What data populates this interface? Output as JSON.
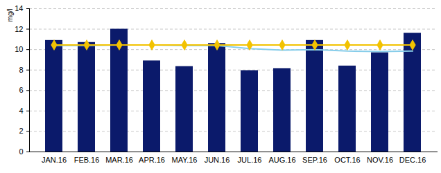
{
  "chart_data": {
    "type": "bar",
    "ylabel": "mg/l",
    "categories": [
      "JAN.16",
      "FEB.16",
      "MAR.16",
      "APR.16",
      "MAY.16",
      "JUN.16",
      "JUL.16",
      "AUG.16",
      "SEP.16",
      "OCT.16",
      "NOV.16",
      "DEC.16"
    ],
    "ylim": [
      0,
      14
    ],
    "yticks": [
      0,
      2,
      4,
      6,
      8,
      10,
      12,
      14
    ],
    "grid": true,
    "series": [
      {
        "type": "bar",
        "color": "#0b1a6b",
        "values": [
          10.9,
          10.7,
          12.0,
          8.9,
          8.35,
          10.6,
          7.95,
          8.15,
          10.9,
          8.4,
          9.7,
          11.6
        ]
      },
      {
        "type": "line",
        "color": "#87cdea",
        "values": [
          10.4,
          10.4,
          10.45,
          10.45,
          10.4,
          10.4,
          10.1,
          9.95,
          10.0,
          9.85,
          9.8,
          9.85
        ]
      },
      {
        "type": "line",
        "color": "#f2c200",
        "marker": "diamond",
        "values": [
          10.45,
          10.45,
          10.45,
          10.45,
          10.45,
          10.45,
          10.45,
          10.45,
          10.45,
          10.45,
          10.45,
          10.45
        ]
      }
    ]
  }
}
